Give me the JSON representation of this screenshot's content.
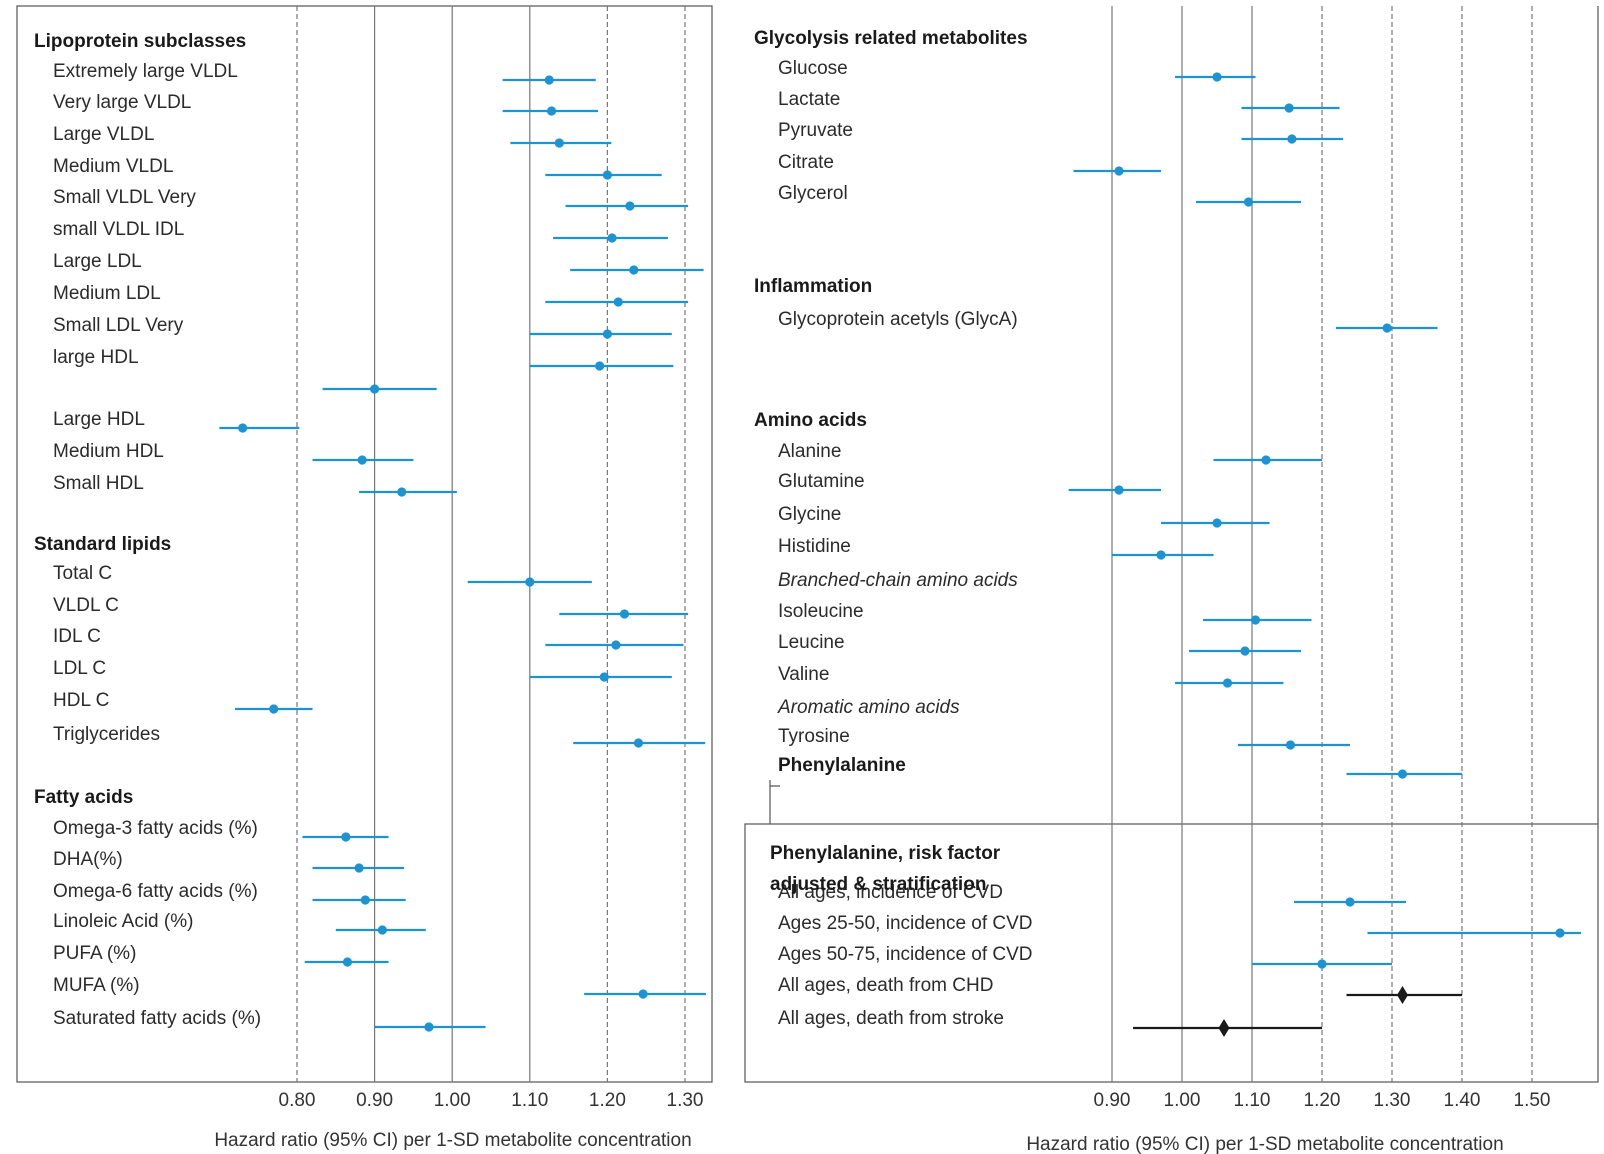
{
  "chart_data": [
    {
      "type": "forest",
      "panel": "left",
      "xlabel": "Hazard ratio (95% CI) per 1-SD metabolite concentration",
      "x_ticks": [
        0.8,
        0.9,
        1.0,
        1.1,
        1.2,
        1.3
      ],
      "x_tick_labels": [
        "0.80",
        "0.90",
        "1.00",
        "1.10",
        "1.20",
        "1.30"
      ],
      "reference_line": 1.0,
      "grid": "vertical lines at ticks (solid at 0.90, 1.00, 1.10; dashed at 0.80, 1.20, 1.30)",
      "marker_color": "#1f93cf",
      "rows": [
        {
          "label": "Lipoprotein subclasses",
          "kind": "header"
        },
        {
          "label": "Extremely large VLDL",
          "hr": 1.125,
          "lo": 1.065,
          "hi": 1.185
        },
        {
          "label": "Very large VLDL",
          "hr": 1.128,
          "lo": 1.065,
          "hi": 1.188
        },
        {
          "label": "Large VLDL",
          "hr": 1.138,
          "lo": 1.075,
          "hi": 1.205
        },
        {
          "label": "Medium VLDL",
          "hr": 1.2,
          "lo": 1.12,
          "hi": 1.27
        },
        {
          "label": "Small VLDL Very",
          "hr": 1.229,
          "lo": 1.146,
          "hi": 1.304
        },
        {
          "label": "small VLDL IDL",
          "hr": 1.206,
          "lo": 1.13,
          "hi": 1.278
        },
        {
          "label": "Large LDL",
          "hr": 1.234,
          "lo": 1.152,
          "hi": 1.324
        },
        {
          "label": "Medium LDL",
          "hr": 1.214,
          "lo": 1.12,
          "hi": 1.304
        },
        {
          "label": "Small LDL Very",
          "hr": 1.2,
          "lo": 1.1,
          "hi": 1.283
        },
        {
          "label": "large HDL",
          "hr": 1.19,
          "lo": 1.1,
          "hi": 1.285
        },
        {
          "label": "",
          "hr": 0.9,
          "lo": 0.833,
          "hi": 0.98
        },
        {
          "label": "Large HDL",
          "hr": 0.73,
          "lo": 0.7,
          "hi": 0.803
        },
        {
          "label": "Medium HDL",
          "hr": 0.884,
          "lo": 0.82,
          "hi": 0.95
        },
        {
          "label": "Small HDL",
          "hr": 0.935,
          "lo": 0.88,
          "hi": 1.006
        },
        {
          "label": "Standard lipids",
          "kind": "header"
        },
        {
          "label": "Total C",
          "hr": 1.1,
          "lo": 1.02,
          "hi": 1.18
        },
        {
          "label": "VLDL C",
          "hr": 1.222,
          "lo": 1.138,
          "hi": 1.304
        },
        {
          "label": "IDL C",
          "hr": 1.211,
          "lo": 1.12,
          "hi": 1.298
        },
        {
          "label": "LDL C",
          "hr": 1.196,
          "lo": 1.1,
          "hi": 1.283
        },
        {
          "label": "HDL C",
          "hr": 0.77,
          "lo": 0.72,
          "hi": 0.82
        },
        {
          "label": "Triglycerides",
          "hr": 1.24,
          "lo": 1.156,
          "hi": 1.326
        },
        {
          "label": "Fatty acids",
          "kind": "header"
        },
        {
          "label": "Omega-3 fatty acids (%)",
          "hr": 0.863,
          "lo": 0.807,
          "hi": 0.918
        },
        {
          "label": "DHA(%)",
          "hr": 0.88,
          "lo": 0.82,
          "hi": 0.938
        },
        {
          "label": "Omega-6 fatty acids (%)",
          "hr": 0.888,
          "lo": 0.82,
          "hi": 0.94
        },
        {
          "label": "Linoleic Acid (%)",
          "hr": 0.91,
          "lo": 0.85,
          "hi": 0.966
        },
        {
          "label": "PUFA (%)",
          "hr": 0.865,
          "lo": 0.81,
          "hi": 0.918
        },
        {
          "label": "MUFA (%)",
          "hr": 1.246,
          "lo": 1.17,
          "hi": 1.327
        },
        {
          "label": "Saturated fatty acids (%)",
          "hr": 0.97,
          "lo": 0.9,
          "hi": 1.043
        }
      ]
    },
    {
      "type": "forest",
      "panel": "right",
      "xlabel": "Hazard ratio (95% CI) per 1-SD metabolite concentration",
      "x_ticks": [
        0.9,
        1.0,
        1.1,
        1.2,
        1.3,
        1.4,
        1.5
      ],
      "x_tick_labels": [
        "0.90",
        "1.00",
        "1.10",
        "1.20",
        "1.30",
        "1.40",
        "1.50"
      ],
      "reference_line": 1.0,
      "grid": "vertical lines at ticks (solid at 0.90, 1.00, 1.10; dashed at 1.20, 1.30, 1.40, 1.50)",
      "marker_color": "#1f93cf",
      "rows": [
        {
          "label": "Glycolysis related metabolites",
          "kind": "header"
        },
        {
          "label": "Glucose",
          "hr": 1.05,
          "lo": 0.99,
          "hi": 1.105
        },
        {
          "label": "Lactate",
          "hr": 1.153,
          "lo": 1.085,
          "hi": 1.225
        },
        {
          "label": "Pyruvate",
          "hr": 1.157,
          "lo": 1.085,
          "hi": 1.23
        },
        {
          "label": "Citrate",
          "hr": 0.91,
          "lo": 0.845,
          "hi": 0.97
        },
        {
          "label": "Glycerol",
          "hr": 1.095,
          "lo": 1.02,
          "hi": 1.17
        },
        {
          "label": "Inflammation",
          "kind": "header"
        },
        {
          "label": "Glycoprotein acetyls (GlycA)",
          "hr": 1.293,
          "lo": 1.22,
          "hi": 1.365
        },
        {
          "label": "Amino acids",
          "kind": "header"
        },
        {
          "label": "Alanine",
          "hr": 1.12,
          "lo": 1.045,
          "hi": 1.2
        },
        {
          "label": "Glutamine",
          "hr": 0.91,
          "lo": 0.838,
          "hi": 0.97
        },
        {
          "label": "Glycine",
          "hr": 1.05,
          "lo": 0.97,
          "hi": 1.125
        },
        {
          "label": "Histidine",
          "hr": 0.97,
          "lo": 0.9,
          "hi": 1.045
        },
        {
          "label": "Branched-chain amino acids",
          "kind": "subheader"
        },
        {
          "label": "Isoleucine",
          "hr": 1.105,
          "lo": 1.03,
          "hi": 1.185
        },
        {
          "label": "Leucine",
          "hr": 1.09,
          "lo": 1.01,
          "hi": 1.17
        },
        {
          "label": "Valine",
          "hr": 1.065,
          "lo": 0.99,
          "hi": 1.145
        },
        {
          "label": "Aromatic amino acids",
          "kind": "subheader"
        },
        {
          "label": "Tyrosine",
          "hr": 1.155,
          "lo": 1.08,
          "hi": 1.24
        },
        {
          "label": "Phenylalanine",
          "hr": 1.315,
          "lo": 1.235,
          "hi": 1.4,
          "bold": true
        }
      ]
    },
    {
      "type": "forest",
      "panel": "right-inset",
      "title": "Phenylalanine, risk factor adjusted & stratification",
      "rows": [
        {
          "label": "All ages, incidence of CVD",
          "hr": 1.24,
          "lo": 1.16,
          "hi": 1.32,
          "marker": "circle",
          "color": "#1f93cf"
        },
        {
          "label": "Ages 25-50, incidence of CVD",
          "hr": 1.54,
          "lo": 1.265,
          "hi": 1.57,
          "marker": "circle",
          "color": "#1f93cf"
        },
        {
          "label": "Ages 50-75, incidence of CVD",
          "hr": 1.2,
          "lo": 1.1,
          "hi": 1.3,
          "marker": "circle",
          "color": "#1f93cf"
        },
        {
          "label": "All ages, death from CHD",
          "hr": 1.315,
          "lo": 1.235,
          "hi": 1.4,
          "marker": "diamond",
          "color": "#1a1a1a"
        },
        {
          "label": "All ages, death from stroke",
          "hr": 1.06,
          "lo": 0.93,
          "hi": 1.2,
          "marker": "diamond",
          "color": "#1a1a1a"
        }
      ]
    }
  ]
}
